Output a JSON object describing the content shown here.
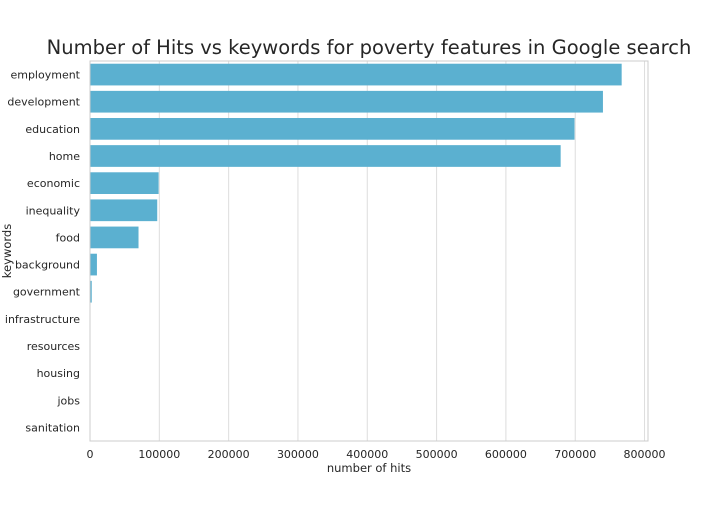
{
  "chart_data": {
    "type": "bar",
    "orientation": "horizontal",
    "title": "Number of Hits vs keywords for poverty features in Google search",
    "xlabel": "number of hits",
    "ylabel": "keywords",
    "categories": [
      "employment",
      "development",
      "education",
      "home",
      "economic",
      "inequality",
      "food",
      "background",
      "government",
      "infrastructure",
      "resources",
      "housing",
      "jobs",
      "sanitation"
    ],
    "values": [
      767000,
      740000,
      699000,
      679000,
      99000,
      97000,
      70000,
      10000,
      2500,
      400,
      300,
      200,
      150,
      100
    ],
    "xlim": [
      0,
      805000
    ],
    "xticks": [
      0,
      100000,
      200000,
      300000,
      400000,
      500000,
      600000,
      700000,
      800000
    ],
    "xtick_labels": [
      "0",
      "100000",
      "200000",
      "300000",
      "400000",
      "500000",
      "600000",
      "700000",
      "800000"
    ],
    "grid": "vertical",
    "bar_color": "#5bb0d0"
  }
}
